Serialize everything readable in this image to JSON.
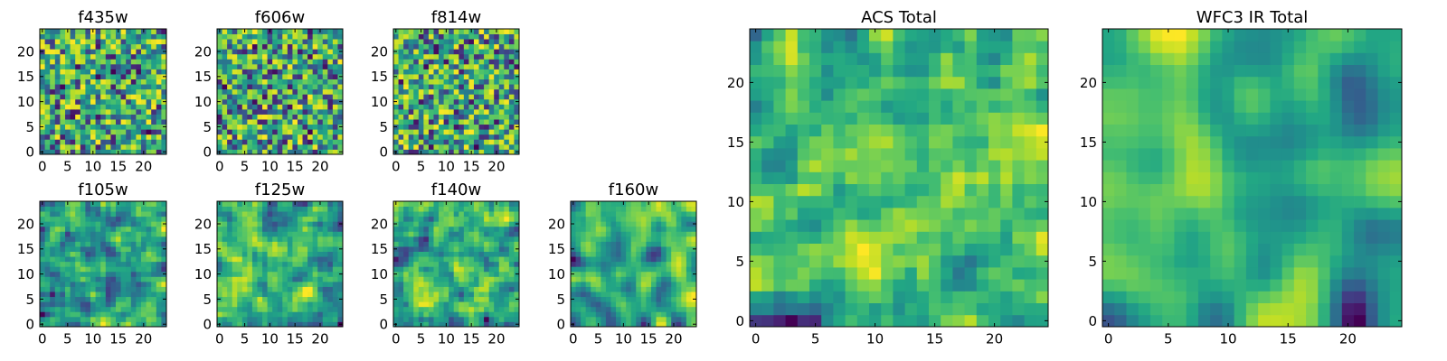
{
  "chart_data": [
    {
      "type": "heatmap",
      "title": "f435w",
      "seed": 11,
      "smooth": 0,
      "grid_size": 25,
      "colormap": "viridis",
      "xticks": [
        0,
        5,
        10,
        15,
        20
      ],
      "yticks": [
        0,
        5,
        10,
        15,
        20
      ],
      "xlim": [
        -0.5,
        24.5
      ],
      "ylim": [
        -0.5,
        24.5
      ]
    },
    {
      "type": "heatmap",
      "title": "f606w",
      "seed": 23,
      "smooth": 0,
      "grid_size": 25,
      "colormap": "viridis",
      "xticks": [
        0,
        5,
        10,
        15,
        20
      ],
      "yticks": [
        0,
        5,
        10,
        15,
        20
      ],
      "xlim": [
        -0.5,
        24.5
      ],
      "ylim": [
        -0.5,
        24.5
      ]
    },
    {
      "type": "heatmap",
      "title": "f814w",
      "seed": 37,
      "smooth": 0,
      "grid_size": 25,
      "colormap": "viridis",
      "xticks": [
        0,
        5,
        10,
        15,
        20
      ],
      "yticks": [
        0,
        5,
        10,
        15,
        20
      ],
      "xlim": [
        -0.5,
        24.5
      ],
      "ylim": [
        -0.5,
        24.5
      ]
    },
    {
      "type": "heatmap",
      "title": "f105w",
      "seed": 41,
      "smooth": 1,
      "grid_size": 25,
      "colormap": "viridis",
      "xticks": [
        0,
        5,
        10,
        15,
        20
      ],
      "yticks": [
        0,
        5,
        10,
        15,
        20
      ],
      "xlim": [
        -0.5,
        24.5
      ],
      "ylim": [
        -0.5,
        24.5
      ]
    },
    {
      "type": "heatmap",
      "title": "f125w",
      "seed": 53,
      "smooth": 1,
      "grid_size": 25,
      "colormap": "viridis",
      "xticks": [
        0,
        5,
        10,
        15,
        20
      ],
      "yticks": [
        0,
        5,
        10,
        15,
        20
      ],
      "xlim": [
        -0.5,
        24.5
      ],
      "ylim": [
        -0.5,
        24.5
      ]
    },
    {
      "type": "heatmap",
      "title": "f140w",
      "seed": 67,
      "smooth": 1,
      "grid_size": 25,
      "colormap": "viridis",
      "xticks": [
        0,
        5,
        10,
        15,
        20
      ],
      "yticks": [
        0,
        5,
        10,
        15,
        20
      ],
      "xlim": [
        -0.5,
        24.5
      ],
      "ylim": [
        -0.5,
        24.5
      ]
    },
    {
      "type": "heatmap",
      "title": "f160w",
      "seed": 79,
      "smooth": 2,
      "grid_size": 25,
      "colormap": "viridis",
      "xticks": [
        0,
        5,
        10,
        15,
        20
      ],
      "yticks": [
        0,
        5,
        10,
        15,
        20
      ],
      "xlim": [
        -0.5,
        24.5
      ],
      "ylim": [
        -0.5,
        24.5
      ]
    },
    {
      "type": "heatmap",
      "title": "ACS Total",
      "seed": 97,
      "smooth": 1,
      "grid_size": 25,
      "colormap": "viridis",
      "xticks": [
        0,
        5,
        10,
        15,
        20
      ],
      "yticks": [
        0,
        5,
        10,
        15,
        20
      ],
      "xlim": [
        -0.5,
        24.5
      ],
      "ylim": [
        -0.5,
        24.5
      ]
    },
    {
      "type": "heatmap",
      "title": "WFC3 IR Total",
      "seed": 131,
      "smooth": 3,
      "grid_size": 25,
      "colormap": "viridis",
      "xticks": [
        0,
        5,
        10,
        15,
        20
      ],
      "yticks": [
        0,
        5,
        10,
        15,
        20
      ],
      "xlim": [
        -0.5,
        24.5
      ],
      "ylim": [
        -0.5,
        24.5
      ]
    }
  ]
}
